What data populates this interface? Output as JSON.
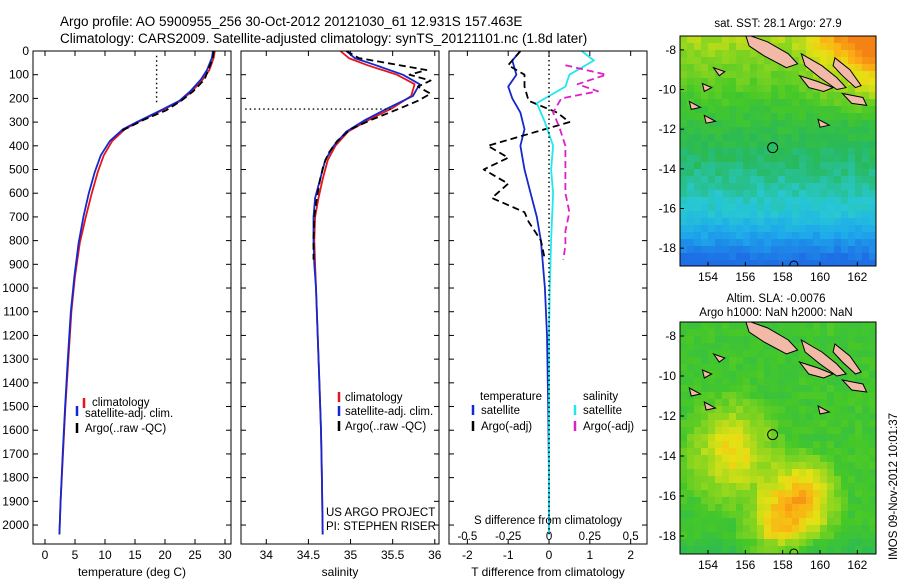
{
  "header": {
    "line1": "Argo profile: AO 5900955_256 30-Oct-2012 20121030_61 12.931S 157.463E",
    "line2": "Climatology: CARS2009. Satellite-adjusted climatology: synTS_20121101.nc (1.8d later)"
  },
  "colors": {
    "clim": "#e8141c",
    "sat": "#1428d0",
    "argo": "#000000",
    "cyan": "#22e6f0",
    "magenta": "#e01ec8"
  },
  "chart_data": [
    {
      "id": "temperature",
      "type": "line",
      "xlabel": "temperature (deg C)",
      "ylabel": "",
      "xlim": [
        -2,
        31
      ],
      "ylim": [
        2080,
        0
      ],
      "y_inverted": true,
      "xticks": [
        0,
        5,
        10,
        15,
        20,
        25,
        30
      ],
      "xtick_labels": [
        "0",
        "5",
        "10",
        "15",
        "20",
        "25",
        "30"
      ],
      "yticks": [
        0,
        100,
        200,
        300,
        400,
        500,
        600,
        700,
        800,
        900,
        1000,
        1100,
        1200,
        1300,
        1400,
        1500,
        1600,
        1700,
        1800,
        1900,
        2000
      ],
      "legend": [
        "climatology",
        "satellite-adj. clim.",
        "Argo(..raw -QC)"
      ],
      "legend_position": "lower-center",
      "series": [
        {
          "name": "climatology",
          "color": "clim",
          "dash": "solid",
          "points": [
            [
              28.3,
              0
            ],
            [
              28.1,
              30
            ],
            [
              27.4,
              80
            ],
            [
              26.3,
              120
            ],
            [
              24.5,
              170
            ],
            [
              22.6,
              210
            ],
            [
              19.5,
              250
            ],
            [
              15.5,
              300
            ],
            [
              13.3,
              330
            ],
            [
              11.2,
              380
            ],
            [
              9.8,
              440
            ],
            [
              8.8,
              510
            ],
            [
              7.8,
              600
            ],
            [
              6.8,
              700
            ],
            [
              5.8,
              810
            ],
            [
              5.0,
              950
            ],
            [
              4.4,
              1100
            ],
            [
              3.9,
              1300
            ],
            [
              3.4,
              1500
            ],
            [
              3.0,
              1700
            ],
            [
              2.6,
              1900
            ],
            [
              2.4,
              2040
            ]
          ]
        },
        {
          "name": "satellite-adj. clim.",
          "color": "sat",
          "dash": "solid",
          "points": [
            [
              28.0,
              0
            ],
            [
              27.8,
              30
            ],
            [
              27.0,
              80
            ],
            [
              26.0,
              120
            ],
            [
              24.2,
              170
            ],
            [
              22.4,
              210
            ],
            [
              19.3,
              250
            ],
            [
              15.3,
              300
            ],
            [
              13.0,
              330
            ],
            [
              10.8,
              380
            ],
            [
              9.3,
              440
            ],
            [
              8.3,
              510
            ],
            [
              7.3,
              600
            ],
            [
              6.4,
              700
            ],
            [
              5.6,
              810
            ],
            [
              4.9,
              950
            ],
            [
              4.3,
              1100
            ],
            [
              3.8,
              1300
            ],
            [
              3.35,
              1500
            ],
            [
              2.95,
              1700
            ],
            [
              2.6,
              1900
            ],
            [
              2.4,
              2040
            ]
          ]
        },
        {
          "name": "Argo(..raw -QC)",
          "color": "argo",
          "dash": "dashed",
          "points": [
            [
              28.1,
              0
            ],
            [
              28.0,
              30
            ],
            [
              27.2,
              80
            ],
            [
              26.6,
              120
            ],
            [
              24.7,
              170
            ],
            [
              22.7,
              210
            ],
            [
              20.2,
              250
            ],
            [
              16.5,
              290
            ],
            [
              14.5,
              315
            ],
            [
              12.5,
              340
            ]
          ]
        },
        {
          "name": "mixed layer",
          "color": "argo",
          "dash": "dotted",
          "points": [
            [
              18.6,
              20
            ],
            [
              18.6,
              220
            ]
          ]
        }
      ]
    },
    {
      "id": "salinity",
      "type": "line",
      "xlabel": "salinity",
      "ylabel": "",
      "xlim": [
        33.7,
        36.05
      ],
      "ylim": [
        2080,
        0
      ],
      "y_inverted": true,
      "xticks": [
        34,
        34.5,
        35,
        35.5,
        36
      ],
      "xtick_labels": [
        "34",
        "34.5",
        "35",
        "35.5",
        "36"
      ],
      "legend": [
        "climatology",
        "satellite-adj. clim.",
        "Argo(..raw -QC)"
      ],
      "legend_position": "lower-right",
      "annotation": [
        "US ARGO PROJECT",
        "PI: STEPHEN RISER"
      ],
      "series": [
        {
          "name": "climatology",
          "color": "clim",
          "dash": "solid",
          "points": [
            [
              34.88,
              0
            ],
            [
              34.98,
              30
            ],
            [
              35.2,
              60
            ],
            [
              35.55,
              100
            ],
            [
              35.76,
              140
            ],
            [
              35.72,
              190
            ],
            [
              35.5,
              240
            ],
            [
              35.22,
              290
            ],
            [
              34.97,
              340
            ],
            [
              34.82,
              400
            ],
            [
              34.73,
              460
            ],
            [
              34.67,
              540
            ],
            [
              34.62,
              620
            ],
            [
              34.58,
              700
            ],
            [
              34.57,
              800
            ],
            [
              34.58,
              900
            ],
            [
              34.59,
              1000
            ],
            [
              34.61,
              1200
            ],
            [
              34.63,
              1400
            ],
            [
              34.65,
              1600
            ],
            [
              34.66,
              1800
            ],
            [
              34.67,
              2040
            ]
          ]
        },
        {
          "name": "satellite-adj. clim.",
          "color": "sat",
          "dash": "solid",
          "points": [
            [
              34.95,
              0
            ],
            [
              35.05,
              30
            ],
            [
              35.3,
              60
            ],
            [
              35.62,
              100
            ],
            [
              35.82,
              140
            ],
            [
              35.74,
              190
            ],
            [
              35.45,
              240
            ],
            [
              35.18,
              290
            ],
            [
              34.95,
              340
            ],
            [
              34.8,
              400
            ],
            [
              34.7,
              460
            ],
            [
              34.64,
              540
            ],
            [
              34.58,
              620
            ],
            [
              34.56,
              700
            ],
            [
              34.56,
              800
            ],
            [
              34.57,
              900
            ],
            [
              34.59,
              1000
            ],
            [
              34.61,
              1200
            ],
            [
              34.63,
              1400
            ],
            [
              34.65,
              1600
            ],
            [
              34.66,
              1800
            ],
            [
              34.67,
              2040
            ]
          ]
        },
        {
          "name": "Argo(..raw -QC)",
          "color": "argo",
          "dash": "dashed",
          "points": [
            [
              34.95,
              0
            ],
            [
              35.1,
              30
            ],
            [
              35.5,
              55
            ],
            [
              35.9,
              80
            ],
            [
              35.7,
              100
            ],
            [
              35.95,
              125
            ],
            [
              35.8,
              150
            ],
            [
              35.95,
              180
            ],
            [
              35.8,
              210
            ],
            [
              35.6,
              240
            ],
            [
              35.25,
              290
            ],
            [
              35.0,
              330
            ],
            [
              34.84,
              380
            ],
            [
              34.74,
              430
            ],
            [
              34.68,
              480
            ],
            [
              34.64,
              540
            ],
            [
              34.6,
              620
            ],
            [
              34.57,
              700
            ],
            [
              34.56,
              800
            ],
            [
              34.56,
              880
            ]
          ]
        },
        {
          "name": "mixed layer",
          "color": "argo",
          "dash": "dotted",
          "points": [
            [
              33.75,
              245
            ],
            [
              35.5,
              245
            ]
          ]
        }
      ]
    },
    {
      "id": "difference",
      "type": "line",
      "xlabel": "T difference from climatology",
      "xlabel_top": "S difference from climatology",
      "xlim": [
        -2.45,
        2.4
      ],
      "ylim": [
        2080,
        0
      ],
      "y_inverted": true,
      "xticks": [
        -2,
        -1,
        0,
        1,
        2
      ],
      "xtick_labels": [
        "-2",
        "-1",
        "0",
        "1",
        "2"
      ],
      "xticks_top": [
        -2,
        -1,
        0,
        1,
        2
      ],
      "xtick_labels_top": [
        "-0.5",
        "-0.25",
        "0",
        "0.25",
        "0.5"
      ],
      "legend_headers": [
        "temperature",
        "salinity"
      ],
      "legend": [
        "satellite",
        "Argo(-adj)",
        "satellite",
        "Argo(-adj)"
      ],
      "legend_position": "lower-center",
      "series": [
        {
          "name": "T satellite",
          "color": "sat",
          "dash": "solid",
          "points": [
            [
              -0.7,
              0
            ],
            [
              -0.9,
              40
            ],
            [
              -0.8,
              100
            ],
            [
              -1.0,
              150
            ],
            [
              -0.9,
              200
            ],
            [
              -0.7,
              260
            ],
            [
              -0.6,
              330
            ],
            [
              -0.7,
              400
            ],
            [
              -0.6,
              500
            ],
            [
              -0.45,
              600
            ],
            [
              -0.3,
              700
            ],
            [
              -0.2,
              800
            ],
            [
              -0.15,
              900
            ],
            [
              -0.1,
              1000
            ],
            [
              -0.05,
              1200
            ],
            [
              -0.02,
              1500
            ],
            [
              0,
              1800
            ],
            [
              0,
              2040
            ]
          ]
        },
        {
          "name": "T Argo(-adj)",
          "color": "argo",
          "dash": "dashed",
          "points": [
            [
              -0.7,
              0
            ],
            [
              -1.0,
              60
            ],
            [
              -0.6,
              100
            ],
            [
              -0.6,
              150
            ],
            [
              -0.5,
              210
            ],
            [
              0.2,
              260
            ],
            [
              0.5,
              300
            ],
            [
              -1.5,
              400
            ],
            [
              -1.0,
              450
            ],
            [
              -1.6,
              500
            ],
            [
              -1.0,
              560
            ],
            [
              -1.4,
              620
            ],
            [
              -0.6,
              680
            ],
            [
              -0.5,
              720
            ],
            [
              -0.2,
              800
            ],
            [
              -0.1,
              880
            ]
          ]
        },
        {
          "name": "S satellite",
          "color": "cyan",
          "dash": "solid",
          "points": [
            [
              0.8,
              0
            ],
            [
              1.1,
              40
            ],
            [
              0.5,
              100
            ],
            [
              0.4,
              150
            ],
            [
              -0.3,
              220
            ],
            [
              -0.1,
              300
            ],
            [
              0.1,
              400
            ],
            [
              0.05,
              500
            ],
            [
              0.1,
              600
            ],
            [
              0.05,
              800
            ],
            [
              0.02,
              1000
            ],
            [
              0,
              1200
            ],
            [
              0,
              1500
            ],
            [
              0,
              1800
            ],
            [
              0,
              2040
            ]
          ]
        },
        {
          "name": "S Argo(-adj)",
          "color": "magenta",
          "dash": "dashed",
          "points": [
            [
              0.4,
              60
            ],
            [
              1.4,
              100
            ],
            [
              0.7,
              140
            ],
            [
              1.2,
              170
            ],
            [
              0.3,
              200
            ],
            [
              0.1,
              260
            ],
            [
              0.25,
              320
            ],
            [
              0.4,
              400
            ],
            [
              0.4,
              500
            ],
            [
              0.4,
              600
            ],
            [
              0.5,
              680
            ],
            [
              0.4,
              760
            ],
            [
              0.4,
              820
            ],
            [
              0.35,
              880
            ]
          ]
        },
        {
          "name": "zero",
          "color": "argo",
          "dash": "dotted",
          "points": [
            [
              0,
              0
            ],
            [
              0,
              2040
            ]
          ]
        }
      ]
    },
    {
      "id": "sst_map",
      "type": "heatmap",
      "title": "sat. SST: 28.1 Argo: 27.9",
      "xlim": [
        152.5,
        163.0
      ],
      "ylim": [
        -18.9,
        -7.3
      ],
      "xticks": [
        154,
        156,
        158,
        160,
        162
      ],
      "xtick_labels": [
        "154",
        "156",
        "158",
        "160",
        "162"
      ],
      "yticks": [
        -8,
        -10,
        -12,
        -14,
        -16,
        -18
      ],
      "ytick_labels": [
        "-8",
        "-10",
        "-12",
        "-14",
        "-16",
        "-18"
      ],
      "marker": [
        157.463,
        -12.931
      ],
      "description": "orange/yellow in north east, green centre, cyan/blue south"
    },
    {
      "id": "sla_map",
      "type": "heatmap",
      "title": "Altim. SLA: -0.0076",
      "subtitle": "Argo h1000: NaN h2000: NaN",
      "xlim": [
        152.5,
        163.0
      ],
      "ylim": [
        -18.9,
        -7.3
      ],
      "xticks": [
        154,
        156,
        158,
        160,
        162
      ],
      "xtick_labels": [
        "154",
        "156",
        "158",
        "160",
        "162"
      ],
      "yticks": [
        -8,
        -10,
        -12,
        -14,
        -16,
        -18
      ],
      "ytick_labels": [
        "-8",
        "-10",
        "-12",
        "-14",
        "-16",
        "-18"
      ],
      "marker": [
        157.463,
        -12.931
      ]
    }
  ],
  "footer": {
    "stamp": "IMOS 09-Nov-2012 10:01:37"
  }
}
